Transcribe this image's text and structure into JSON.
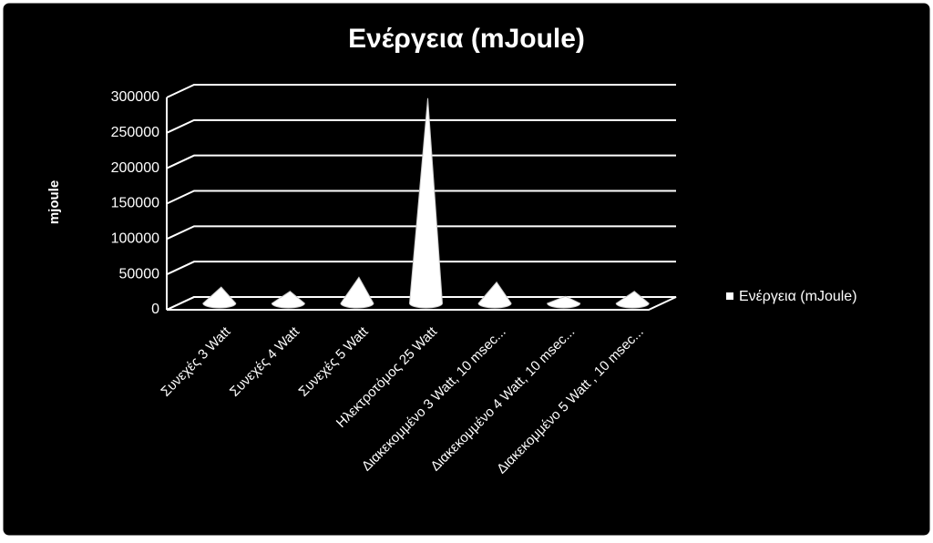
{
  "chart_data": {
    "type": "cone",
    "title": "Ενέργεια (mJoule)",
    "y_label": "mjoule",
    "categories": [
      "Συνεχές 3 Watt",
      "Συνεχές 4 Watt",
      "Συνεχές 5 Watt",
      "Ηλεκτροτόμος 25 Watt",
      "Διακεκομμένο 3 Watt, 10 msec...",
      "Διακεκομμένο 4 Watt, 10 msec...",
      "Διακεκομμένο 5 Watt , 10 msec..."
    ],
    "series": [
      {
        "name": "Ενέργεια (mJoule)",
        "color": "#ffffff",
        "values": [
          23000,
          17000,
          37000,
          290000,
          30000,
          10000,
          17000
        ]
      }
    ],
    "ylim": [
      0,
      300000
    ],
    "yticks": [
      0,
      50000,
      100000,
      150000,
      200000,
      250000,
      300000
    ],
    "grid": true,
    "legend": "right"
  }
}
